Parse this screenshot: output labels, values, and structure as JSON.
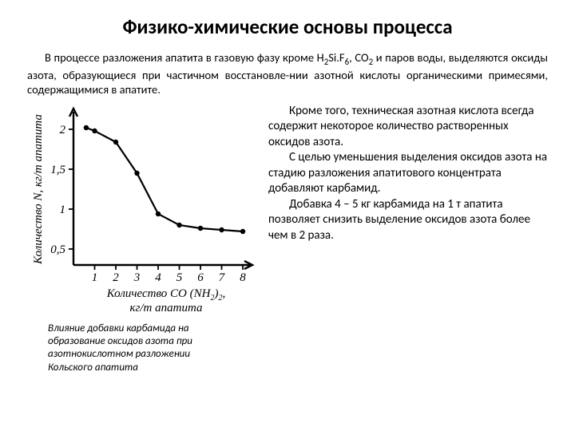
{
  "title": "Физико-химические основы процесса",
  "intro_1": "В процессе разложения апатита в газовую фазу кроме H",
  "intro_f1": "2",
  "intro_2": "Si.F",
  "intro_f2": "6",
  "intro_3": ", CO",
  "intro_f3": "2",
  "intro_4": " и паров воды, выделяются оксиды азота, образующиеся при частичном восстановле-нии азотной кислоты органическими примесями, содержащимися в апатите.",
  "right_p1": "Кроме того, техническая азотная кислота всегда содержит некоторое количество растворенных оксидов азота.",
  "right_p2": "С целью уменьшения выделения оксидов азота на стадию разложения апатитового концентрата добавляют карбамид.",
  "right_p3": "Добавка 4 – 5 кг карбамида на 1 т апатита позволяет снизить выделение оксидов азота более чем в 2 раза.",
  "caption": "Влияние добавки карбамида на образование оксидов азота при азотнокислотном разложении Кольского апатита",
  "chart": {
    "type": "line",
    "x_ticks": [
      1,
      2,
      3,
      4,
      5,
      6,
      7,
      8
    ],
    "y_ticks": [
      0.5,
      1,
      1.5,
      2
    ],
    "y_tick_labels": [
      "0,5",
      "1",
      "1,5",
      "2"
    ],
    "x_label_l1": "Количество CO (NH",
    "x_label_sub": "2",
    "x_label_l1b": ")",
    "x_label_sub2": "2",
    "x_label_l1c": ",",
    "x_label_l2": "кг/т апатита",
    "y_label": "Количество N, кг/т апатита",
    "points": [
      {
        "x": 0.6,
        "y": 2.02
      },
      {
        "x": 1.0,
        "y": 1.98
      },
      {
        "x": 2.0,
        "y": 1.84
      },
      {
        "x": 3.0,
        "y": 1.45
      },
      {
        "x": 4.0,
        "y": 0.94
      },
      {
        "x": 5.0,
        "y": 0.8
      },
      {
        "x": 6.0,
        "y": 0.76
      },
      {
        "x": 7.0,
        "y": 0.74
      },
      {
        "x": 8.0,
        "y": 0.72
      }
    ],
    "stroke": "#000000",
    "stroke_width": 2.2,
    "marker_r": 3.2,
    "tick_font": 15,
    "label_font": 15,
    "axis_width": 2.4
  }
}
